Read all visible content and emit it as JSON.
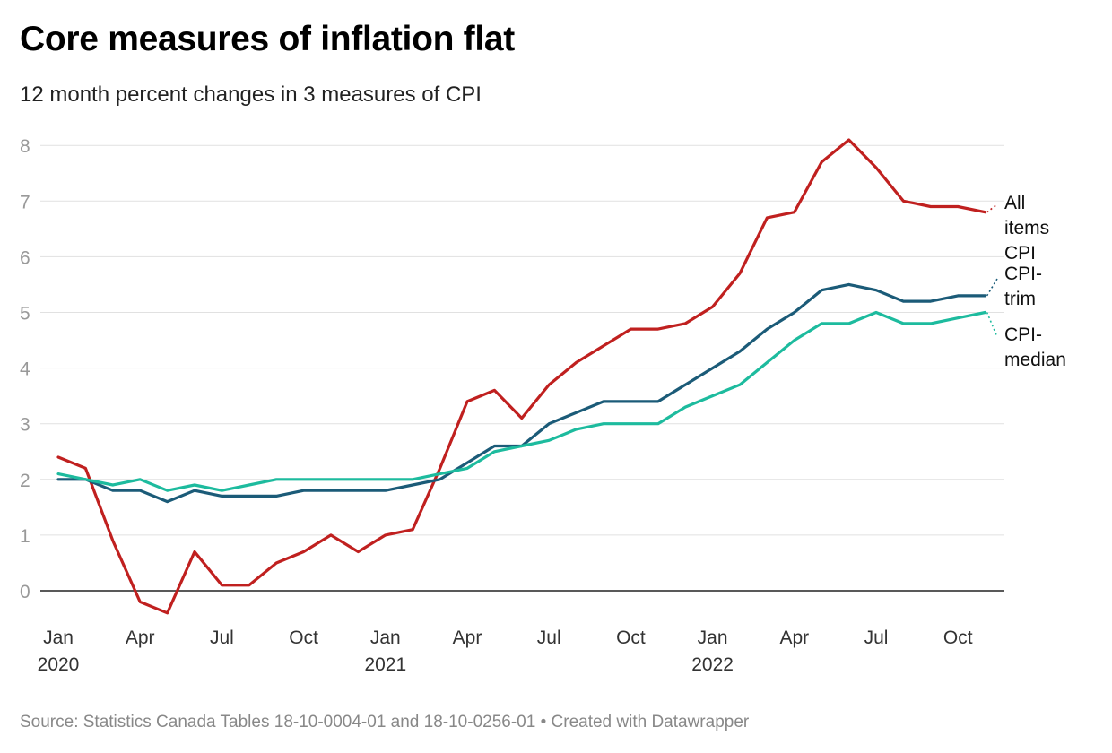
{
  "title": "Core measures of inflation flat",
  "subtitle": "12 month percent changes in 3 measures of CPI",
  "footer": "Source: Statistics Canada Tables 18-10-0004-01 and 18-10-0256-01 • Created with Datawrapper",
  "chart_data": {
    "type": "line",
    "x": [
      "2020-01",
      "2020-02",
      "2020-03",
      "2020-04",
      "2020-05",
      "2020-06",
      "2020-07",
      "2020-08",
      "2020-09",
      "2020-10",
      "2020-11",
      "2020-12",
      "2021-01",
      "2021-02",
      "2021-03",
      "2021-04",
      "2021-05",
      "2021-06",
      "2021-07",
      "2021-08",
      "2021-09",
      "2021-10",
      "2021-11",
      "2021-12",
      "2022-01",
      "2022-02",
      "2022-03",
      "2022-04",
      "2022-05",
      "2022-06",
      "2022-07",
      "2022-08",
      "2022-09",
      "2022-10",
      "2022-11"
    ],
    "x_ticks": [
      {
        "label": "Jan",
        "sub": "2020",
        "x": "2020-01"
      },
      {
        "label": "Apr",
        "sub": "",
        "x": "2020-04"
      },
      {
        "label": "Jul",
        "sub": "",
        "x": "2020-07"
      },
      {
        "label": "Oct",
        "sub": "",
        "x": "2020-10"
      },
      {
        "label": "Jan",
        "sub": "2021",
        "x": "2021-01"
      },
      {
        "label": "Apr",
        "sub": "",
        "x": "2021-04"
      },
      {
        "label": "Jul",
        "sub": "",
        "x": "2021-07"
      },
      {
        "label": "Oct",
        "sub": "",
        "x": "2021-10"
      },
      {
        "label": "Jan",
        "sub": "2022",
        "x": "2022-01"
      },
      {
        "label": "Apr",
        "sub": "",
        "x": "2022-04"
      },
      {
        "label": "Jul",
        "sub": "",
        "x": "2022-07"
      },
      {
        "label": "Oct",
        "sub": "",
        "x": "2022-10"
      }
    ],
    "y_ticks": [
      "0",
      "1",
      "2",
      "3",
      "4",
      "5",
      "6",
      "7",
      "8"
    ],
    "ylim": [
      -0.4,
      8
    ],
    "grid": true,
    "series": [
      {
        "name": "All items CPI",
        "label_lines": [
          "All",
          "items",
          "CPI"
        ],
        "color": "#c0201f",
        "values": [
          2.4,
          2.2,
          0.9,
          -0.2,
          -0.4,
          0.7,
          0.1,
          0.1,
          0.5,
          0.7,
          1.0,
          0.7,
          1.0,
          1.1,
          2.2,
          3.4,
          3.6,
          3.1,
          3.7,
          4.1,
          4.4,
          4.7,
          4.7,
          4.8,
          5.1,
          5.7,
          6.7,
          6.8,
          7.7,
          8.1,
          7.6,
          7.0,
          6.9,
          6.9,
          6.8
        ]
      },
      {
        "name": "CPI-trim",
        "label_lines": [
          "CPI-",
          "trim"
        ],
        "color": "#1b5b78",
        "values": [
          2.0,
          2.0,
          1.8,
          1.8,
          1.6,
          1.8,
          1.7,
          1.7,
          1.7,
          1.8,
          1.8,
          1.8,
          1.8,
          1.9,
          2.0,
          2.3,
          2.6,
          2.6,
          3.0,
          3.2,
          3.4,
          3.4,
          3.4,
          3.7,
          4.0,
          4.3,
          4.7,
          5.0,
          5.4,
          5.5,
          5.4,
          5.2,
          5.2,
          5.3,
          5.3
        ]
      },
      {
        "name": "CPI-median",
        "label_lines": [
          "CPI-",
          "median"
        ],
        "color": "#1dbb9e",
        "values": [
          2.1,
          2.0,
          1.9,
          2.0,
          1.8,
          1.9,
          1.8,
          1.9,
          2.0,
          2.0,
          2.0,
          2.0,
          2.0,
          2.0,
          2.1,
          2.2,
          2.5,
          2.6,
          2.7,
          2.9,
          3.0,
          3.0,
          3.0,
          3.3,
          3.5,
          3.7,
          4.1,
          4.5,
          4.8,
          4.8,
          5.0,
          4.8,
          4.8,
          4.9,
          5.0
        ]
      }
    ]
  }
}
